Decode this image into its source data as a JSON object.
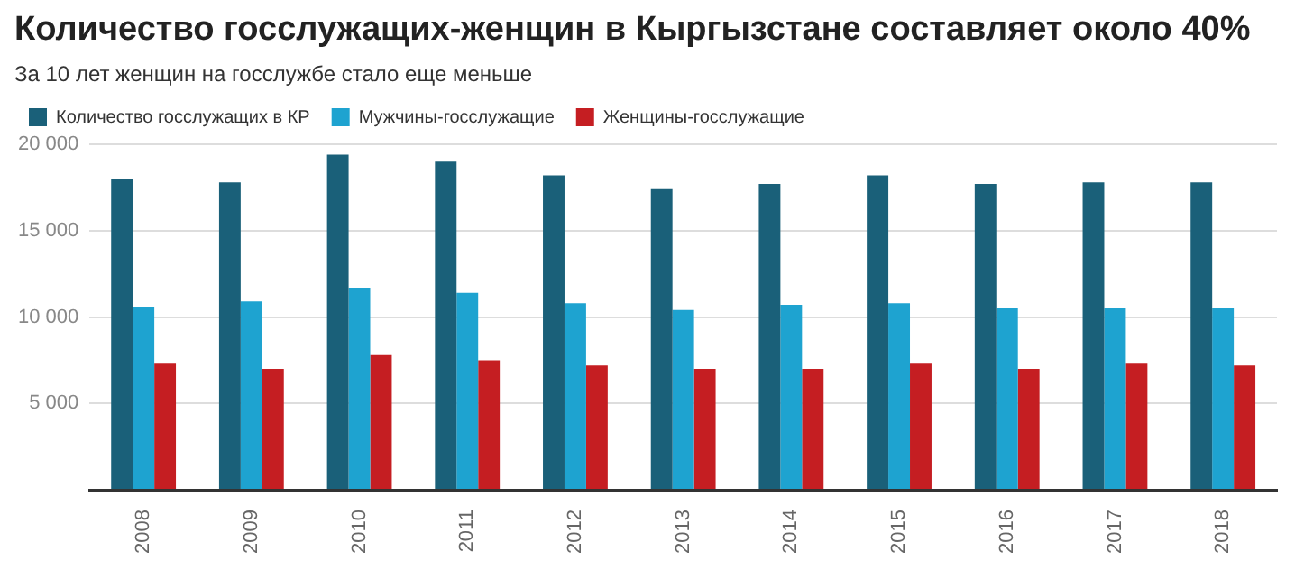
{
  "chart_data": {
    "type": "bar",
    "title": "Количество госслужащих-женщин в Кыргызстане составляет около 40%",
    "subtitle": "За 10 лет женщин на госслужбе стало еще меньше",
    "categories": [
      "2008",
      "2009",
      "2010",
      "2011",
      "2012",
      "2013",
      "2014",
      "2015",
      "2016",
      "2017",
      "2018"
    ],
    "series": [
      {
        "name": "Количество госслужащих в КР",
        "color": "#1a6079",
        "values": [
          18000,
          17800,
          19400,
          19000,
          18200,
          17400,
          17700,
          18200,
          17700,
          17800,
          17800
        ]
      },
      {
        "name": "Мужчины-госслужащие",
        "color": "#1ea3d0",
        "values": [
          10600,
          10900,
          11700,
          11400,
          10800,
          10400,
          10700,
          10800,
          10500,
          10500,
          10500
        ]
      },
      {
        "name": "Женщины-госслужащие",
        "color": "#c51e22",
        "values": [
          7300,
          7000,
          7800,
          7500,
          7200,
          7000,
          7000,
          7300,
          7000,
          7300,
          7200
        ]
      }
    ],
    "ylim": [
      0,
      20000
    ],
    "yticks": [
      {
        "value": 0,
        "label": null
      },
      {
        "value": 5000,
        "label": "5 000"
      },
      {
        "value": 10000,
        "label": "10 000"
      },
      {
        "value": 15000,
        "label": "15 000"
      },
      {
        "value": 20000,
        "label": "20 000"
      }
    ],
    "grid": "y",
    "legend": "top left"
  }
}
